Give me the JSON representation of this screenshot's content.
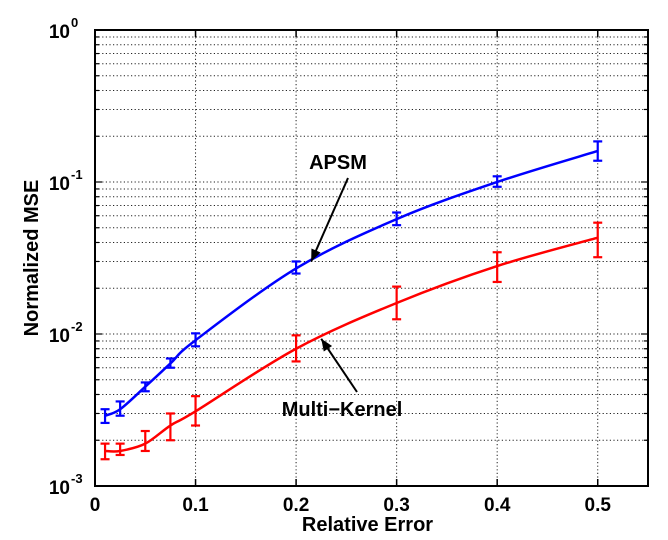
{
  "chart_data": {
    "type": "line",
    "title": "",
    "xlabel": "Relative Error",
    "ylabel": "Normalized MSE",
    "xlim": [
      0,
      0.55
    ],
    "ylim": [
      0.001,
      1
    ],
    "yscale": "log",
    "grid": true,
    "x_ticks": [
      "0",
      "0.1",
      "0.2",
      "0.3",
      "0.4",
      "0.5"
    ],
    "y_ticks": [
      {
        "base": "10",
        "exp": "-3"
      },
      {
        "base": "10",
        "exp": "-2"
      },
      {
        "base": "10",
        "exp": "-1"
      },
      {
        "base": "10",
        "exp": "0"
      }
    ],
    "series": [
      {
        "name": "APSM",
        "color": "#0000ff",
        "x": [
          0.01,
          0.025,
          0.05,
          0.075,
          0.1,
          0.2,
          0.3,
          0.4,
          0.5
        ],
        "y": [
          0.0029,
          0.0032,
          0.0045,
          0.0064,
          0.0091,
          0.027,
          0.057,
          0.1,
          0.16
        ],
        "err_low": [
          0.0026,
          0.0029,
          0.0042,
          0.006,
          0.0083,
          0.025,
          0.052,
          0.093,
          0.138
        ],
        "err_high": [
          0.0032,
          0.0036,
          0.0048,
          0.0069,
          0.0101,
          0.03,
          0.063,
          0.109,
          0.185
        ]
      },
      {
        "name": "Multi−Kernel",
        "color": "#ff0000",
        "x": [
          0.01,
          0.025,
          0.05,
          0.075,
          0.1,
          0.2,
          0.3,
          0.4,
          0.5
        ],
        "y": [
          0.0017,
          0.0017,
          0.0019,
          0.0025,
          0.0031,
          0.008,
          0.016,
          0.028,
          0.043
        ],
        "err_low": [
          0.0015,
          0.0016,
          0.0017,
          0.002,
          0.0025,
          0.0066,
          0.0125,
          0.022,
          0.032
        ],
        "err_high": [
          0.0019,
          0.0019,
          0.0023,
          0.003,
          0.0039,
          0.0098,
          0.0205,
          0.0345,
          0.054
        ]
      }
    ],
    "annotations": [
      {
        "text": "APSM",
        "points_to": {
          "x": 0.215,
          "y": 0.03
        }
      },
      {
        "text": "Multi−Kernel",
        "points_to": {
          "x": 0.225,
          "y": 0.0093
        }
      }
    ]
  }
}
